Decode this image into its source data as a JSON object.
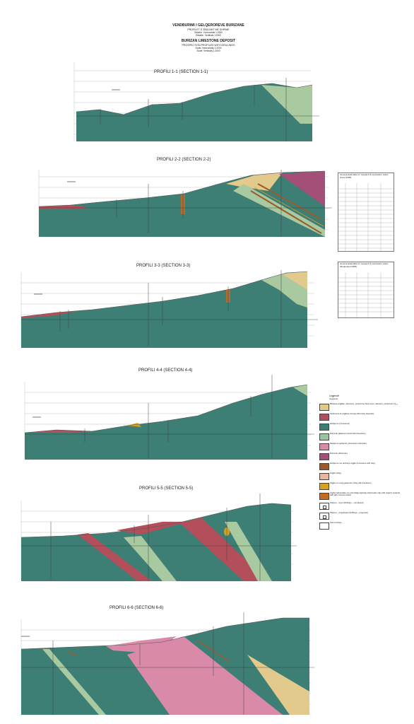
{
  "header": {
    "title_al": "VENDBURIMI I GELQEROREVE BURIZANE",
    "subtitle_al": "PROFILET E ZBULIMIT ME SHPIME",
    "scale_h_al": "Shkalla : Horizontale 1:2000",
    "scale_v_al": "Shkalla : Vertikale 1:2000",
    "title_en": "BURIZAN LIMESTONE DEPOSIT",
    "subtitle_en": "PROSPECTION PROFILES WITH DRILLINGS",
    "scale_h_en": "Scale: Horizontally 1:2000",
    "scale_v_en": "Scale: Vertically 1:2000"
  },
  "sections": [
    {
      "id": 1,
      "title": "PROFILI  1-1 (SECTION 1-1)"
    },
    {
      "id": 2,
      "title": "PROFILI  2-2 (SECTION 2-2)"
    },
    {
      "id": 3,
      "title": "PROFILI  3-3 (SECTION 3-3)"
    },
    {
      "id": 4,
      "title": "PROFILI  4-4 (SECTION 4-4)"
    },
    {
      "id": 5,
      "title": "PROFILI  5-5 (SECTION 5-5)"
    },
    {
      "id": 6,
      "title": "PROFILI  6-6 (SECTION 6-6)"
    }
  ],
  "tables": [
    {
      "caption": "General data table for research & exploration works (Fund 2008)"
    },
    {
      "caption": "General data table for research & exploration works (Requested 2008)"
    }
  ],
  "legend": {
    "heading_al": "Legjendë",
    "heading_en": "(Legend)",
    "items": [
      {
        "label": "Mbulesa argjilike, deluvione, proluvione (Soil cover, deluvium, proluvium) Q₃-₄",
        "color": "#e2c98c"
      },
      {
        "label": "Sedimente të argjilave të kuqe (Red clay deposits)",
        "color": "#b34f5a"
      },
      {
        "label": "Gëlqerore (Limestone)",
        "color": "#3d7f74"
      },
      {
        "label": "Dolomite gëlqerore (Dolomitic limestone)",
        "color": "#9ec49e"
      },
      {
        "label": "Gëlqerore gelqerore (Limestone dolomite)",
        "color": "#d98aa8"
      },
      {
        "label": "Dolomite (Dolomite)",
        "color": "#a44f78"
      },
      {
        "label": "Gelqerore me përzierje argjile (Limestone with clay)",
        "color": "#9b5a2e"
      },
      {
        "label": "Argjile (Clay)",
        "color": "#e8b4a0"
      },
      {
        "label": "Argjile me copa gelqerore (Clay with limestone)",
        "color": "#d8a020"
      },
      {
        "label": "Argjile karbonatike me përmbajtje ligëndje (Carbonate clay with organic material with light colored tracks)",
        "color": "#c86a22"
      },
      {
        "label": "Shpime – kryer (Drillings – completed)",
        "color": "marker"
      },
      {
        "label": "Shpime – projektuara (Drillings – projected)",
        "color": "marker"
      },
      {
        "label": "Karst surface",
        "color": "marker"
      }
    ]
  },
  "colors": {
    "limestone": "#3d7f74",
    "dolomitic_limestone": "#a9c9a0",
    "red_clay": "#b34f5a",
    "dolomite": "#a44f78",
    "pink_dolomite": "#d98aa8",
    "soil": "#e2c98c"
  }
}
